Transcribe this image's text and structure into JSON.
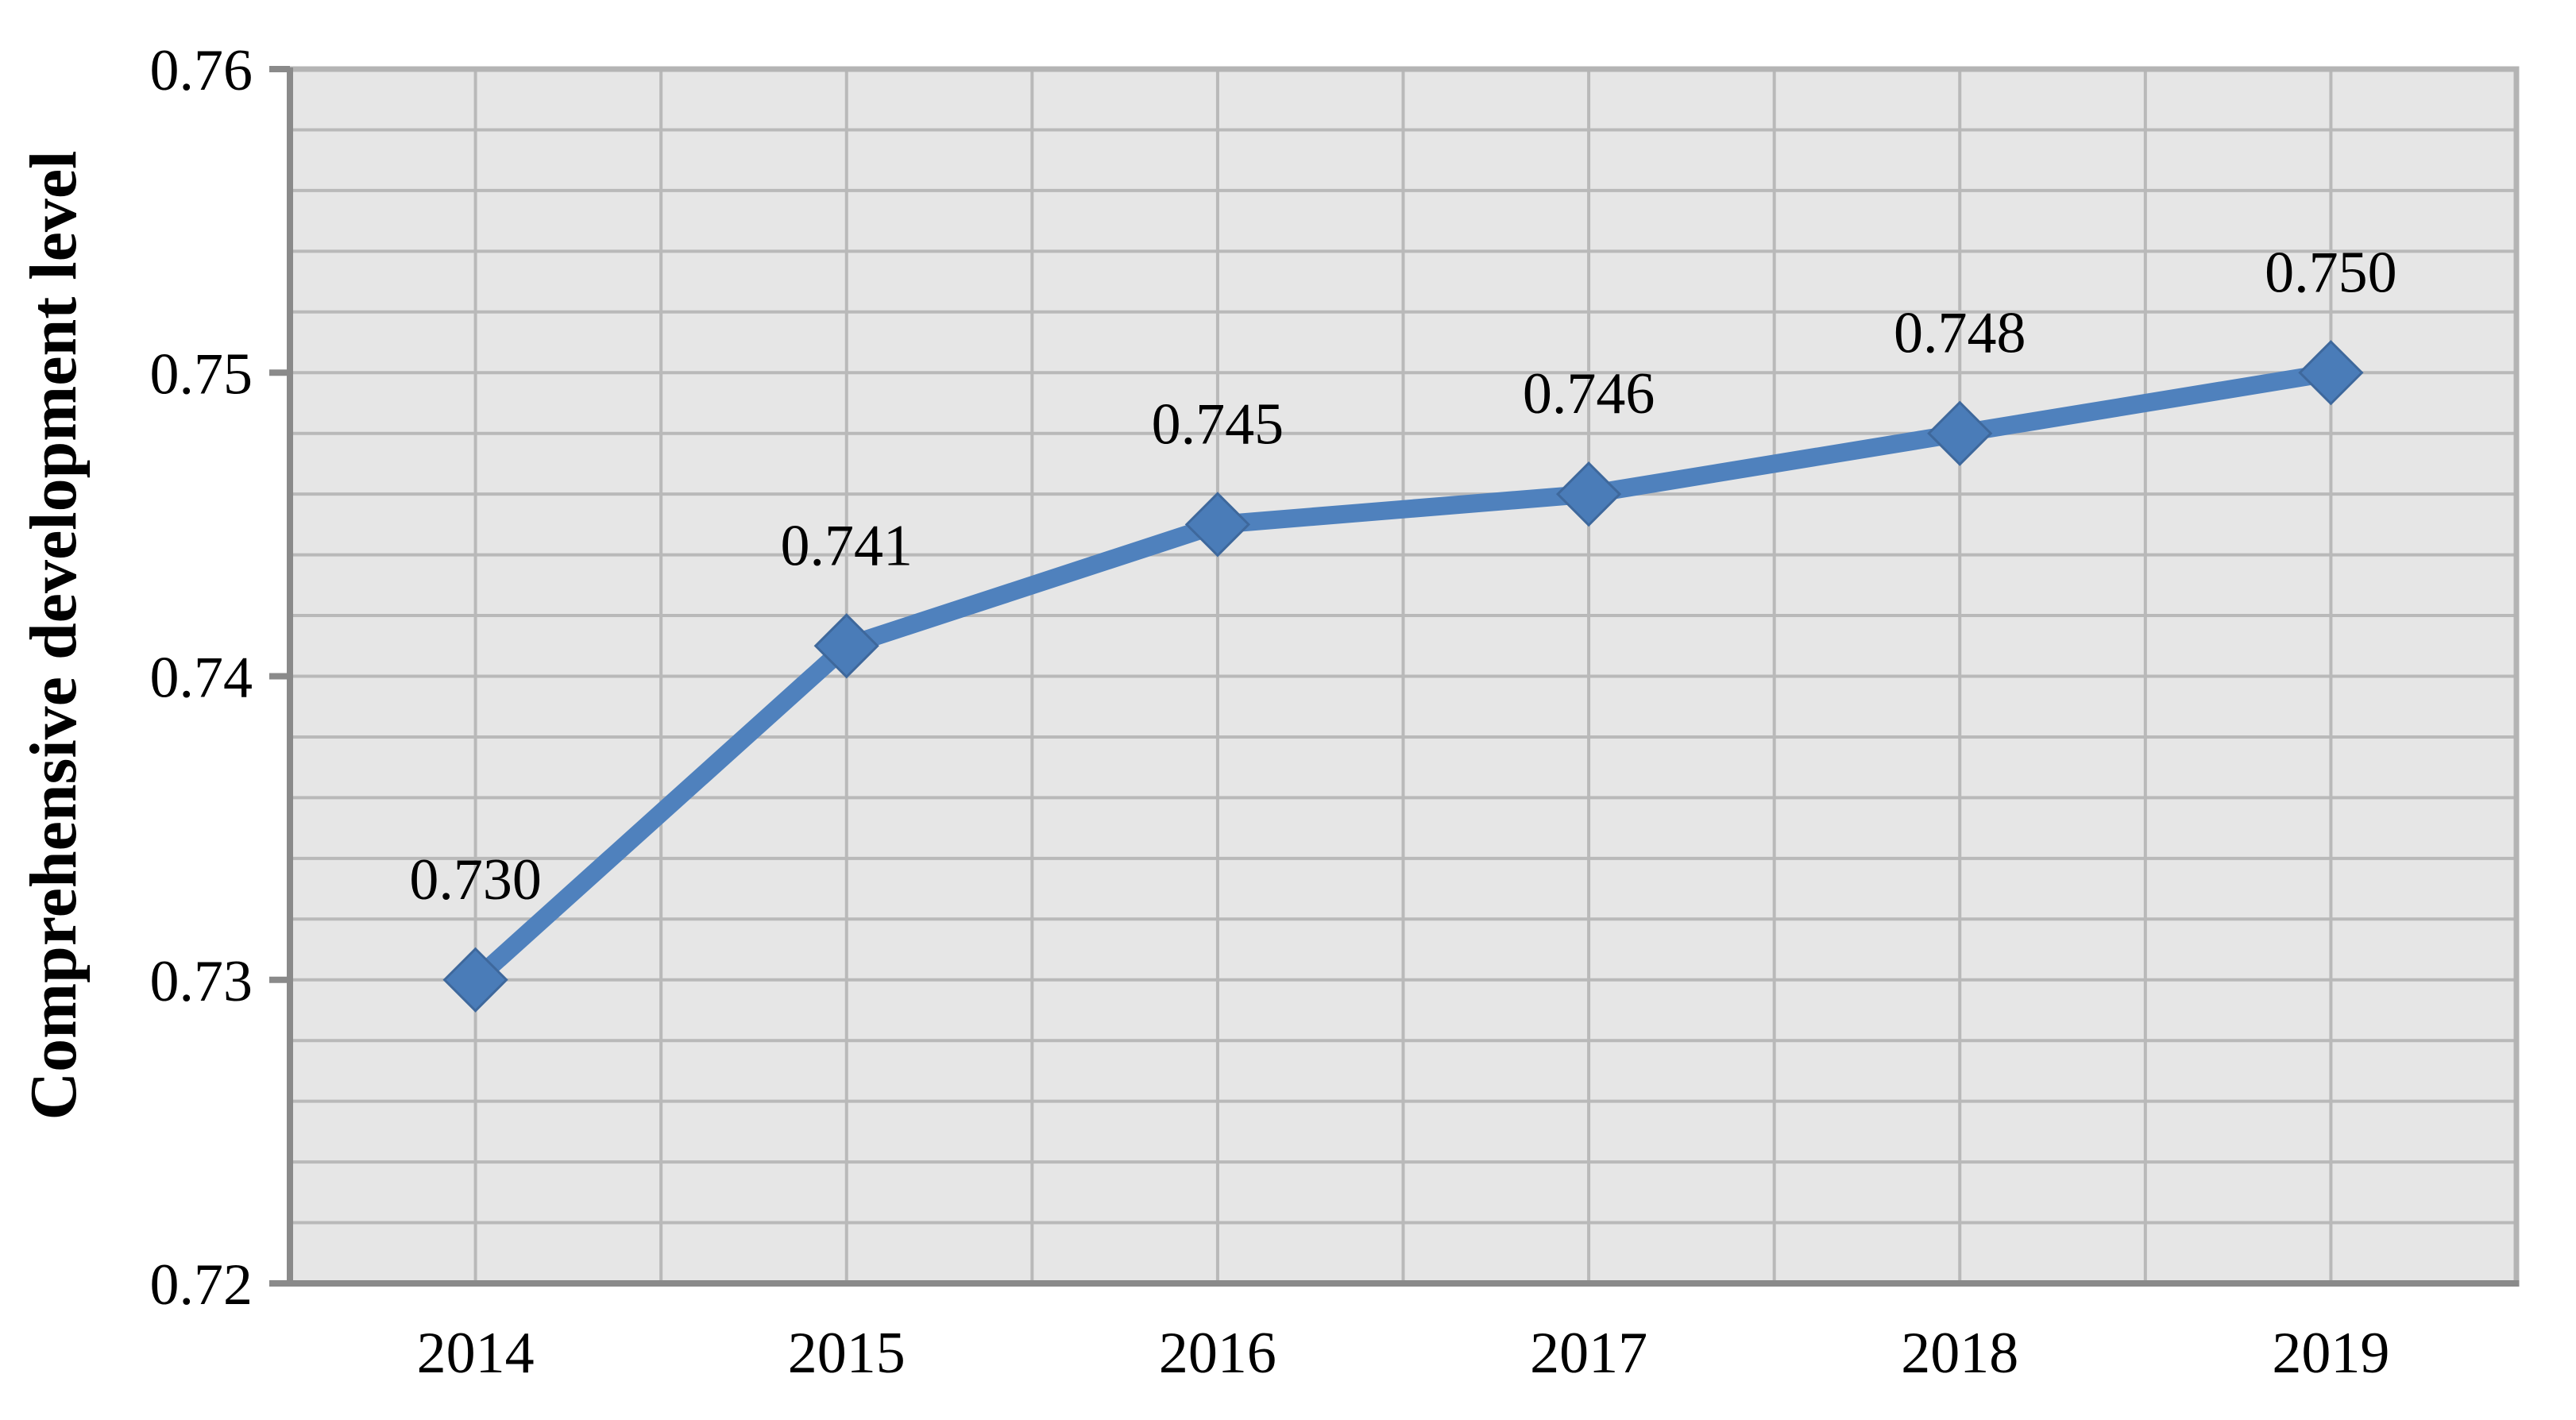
{
  "chart_data": {
    "type": "line",
    "title": "",
    "xlabel": "",
    "ylabel": "Comprehensive development level",
    "categories": [
      "2014",
      "2015",
      "2016",
      "2017",
      "2018",
      "2019"
    ],
    "series": [
      {
        "name": "Comprehensive development level",
        "values": [
          0.73,
          0.741,
          0.745,
          0.746,
          0.748,
          0.75
        ]
      }
    ],
    "data_labels": [
      "0.730",
      "0.741",
      "0.745",
      "0.746",
      "0.748",
      "0.750"
    ],
    "y_tick_labels": [
      "0.76",
      "0.75",
      "0.74",
      "0.73",
      "0.72"
    ],
    "ylim": [
      0.72,
      0.76
    ],
    "y_major_unit": 0.01,
    "y_minor_unit": 0.002,
    "x_minor_divisions_per_category": 2,
    "grid": true,
    "legend": "none",
    "marker": "diamond",
    "colors": {
      "line": "#4F81BD",
      "marker_fill": "#4A7CB8",
      "marker_edge": "#3E689C",
      "plot_bg": "#E6E6E6",
      "gridline": "#B9B9B9",
      "border": "#B4B4B4",
      "axis": "#8A8A8A",
      "text": "#000000",
      "page_bg": "#FFFFFF"
    }
  }
}
